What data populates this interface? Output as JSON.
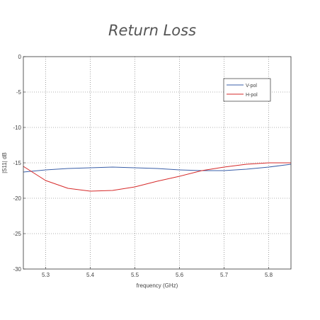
{
  "chart_data": {
    "type": "line",
    "title": "Return Loss",
    "xlabel": "frequency (GHz)",
    "ylabel": "|S11| dB",
    "xlim": [
      5.25,
      5.85
    ],
    "ylim": [
      -30,
      0
    ],
    "xticks": [
      5.3,
      5.4,
      5.5,
      5.6,
      5.7,
      5.8
    ],
    "xtick_labels": [
      "5.3",
      "5.4",
      "5.5",
      "5.6",
      "5.7",
      "5.8"
    ],
    "yticks": [
      0,
      -5,
      -10,
      -15,
      -20,
      -25,
      -30
    ],
    "ytick_labels": [
      "0",
      "-5",
      "-10",
      "-15",
      "-20",
      "-25",
      "-30"
    ],
    "grid": true,
    "legend_position": "top-right",
    "series": [
      {
        "name": "V-pol",
        "color": "#3a5fa8",
        "x": [
          5.25,
          5.3,
          5.35,
          5.4,
          5.45,
          5.5,
          5.55,
          5.6,
          5.65,
          5.7,
          5.75,
          5.8,
          5.85
        ],
        "y": [
          -16.3,
          -16.0,
          -15.8,
          -15.7,
          -15.6,
          -15.7,
          -15.8,
          -16.0,
          -16.1,
          -16.1,
          -15.9,
          -15.6,
          -15.2
        ]
      },
      {
        "name": "H-pol",
        "color": "#d62a2a",
        "x": [
          5.25,
          5.3,
          5.35,
          5.4,
          5.45,
          5.5,
          5.55,
          5.6,
          5.65,
          5.7,
          5.75,
          5.8,
          5.85
        ],
        "y": [
          -15.5,
          -17.5,
          -18.6,
          -19.0,
          -18.9,
          -18.4,
          -17.6,
          -16.9,
          -16.1,
          -15.6,
          -15.2,
          -15.0,
          -15.0
        ]
      }
    ]
  }
}
